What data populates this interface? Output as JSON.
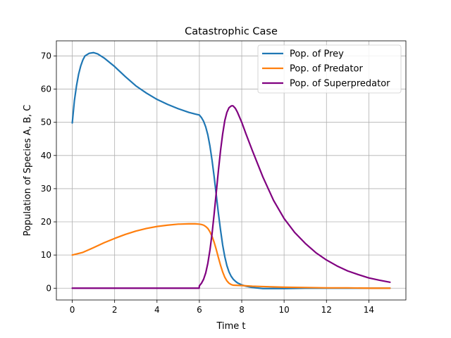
{
  "chart_data": {
    "type": "line",
    "title": "Catastrophic Case",
    "xlabel": "Time t",
    "ylabel": "Population of Species A, B, C",
    "xlim": [
      -0.75,
      15.75
    ],
    "ylim": [
      -3.55,
      74.55
    ],
    "xticks": [
      0,
      2,
      4,
      6,
      8,
      10,
      12,
      14
    ],
    "yticks": [
      0,
      10,
      20,
      30,
      40,
      50,
      60,
      70
    ],
    "grid": true,
    "legend_position": "top-right",
    "series": [
      {
        "name": "Pop. of Prey",
        "color": "#1f77b4",
        "x": [
          0,
          0.1,
          0.2,
          0.3,
          0.4,
          0.5,
          0.6,
          0.8,
          1.0,
          1.2,
          1.5,
          2.0,
          2.5,
          3.0,
          3.5,
          4.0,
          4.5,
          5.0,
          5.5,
          5.8,
          6.0,
          6.1,
          6.2,
          6.3,
          6.4,
          6.5,
          6.6,
          6.7,
          6.8,
          6.9,
          7.0,
          7.1,
          7.2,
          7.3,
          7.4,
          7.5,
          7.6,
          7.7,
          7.8,
          8.0,
          8.2,
          8.5,
          9.0,
          10.0,
          11.0,
          12.0,
          13.0,
          14.0,
          15.0
        ],
        "y": [
          49.8,
          56.5,
          61.0,
          64.5,
          67.0,
          68.8,
          70.0,
          70.8,
          71.0,
          70.6,
          69.4,
          66.8,
          63.8,
          61.0,
          58.8,
          56.9,
          55.4,
          54.1,
          53.0,
          52.5,
          52.2,
          51.4,
          50.3,
          48.6,
          46.2,
          42.8,
          38.5,
          33.5,
          28.0,
          22.5,
          17.5,
          13.0,
          9.5,
          6.8,
          4.9,
          3.6,
          2.7,
          2.1,
          1.6,
          1.0,
          0.6,
          0.2,
          -0.1,
          -0.1,
          0.0,
          0.0,
          0.0,
          0.0,
          0.0
        ]
      },
      {
        "name": "Pop. of Predator",
        "color": "#ff7f0e",
        "x": [
          0,
          0.5,
          1.0,
          1.5,
          2.0,
          2.5,
          3.0,
          3.5,
          4.0,
          4.5,
          5.0,
          5.5,
          5.8,
          6.0,
          6.1,
          6.2,
          6.3,
          6.4,
          6.5,
          6.6,
          6.7,
          6.8,
          6.9,
          7.0,
          7.1,
          7.2,
          7.3,
          7.4,
          7.5,
          7.6,
          8.0,
          8.5,
          9.0,
          10.0,
          11.0,
          12.0,
          13.0,
          14.0,
          15.0
        ],
        "y": [
          10.0,
          10.8,
          12.2,
          13.7,
          15.0,
          16.2,
          17.2,
          18.0,
          18.6,
          19.0,
          19.3,
          19.4,
          19.4,
          19.3,
          19.2,
          19.0,
          18.6,
          18.0,
          17.0,
          15.6,
          13.8,
          11.6,
          9.2,
          6.9,
          4.9,
          3.3,
          2.2,
          1.5,
          1.1,
          0.9,
          0.8,
          0.6,
          0.5,
          0.3,
          0.2,
          0.1,
          0.1,
          0.0,
          0.0
        ]
      },
      {
        "name": "Pop. of Superpredator",
        "color": "#800080",
        "x": [
          0,
          1,
          2,
          3,
          4,
          5,
          5.99,
          6.0,
          6.1,
          6.2,
          6.3,
          6.4,
          6.5,
          6.6,
          6.7,
          6.8,
          6.9,
          7.0,
          7.1,
          7.2,
          7.3,
          7.4,
          7.5,
          7.55,
          7.6,
          7.7,
          7.8,
          8.0,
          8.2,
          8.5,
          9.0,
          9.5,
          10.0,
          10.5,
          11.0,
          11.5,
          12.0,
          12.5,
          13.0,
          13.5,
          14.0,
          14.5,
          15.0
        ],
        "y": [
          0.0,
          0.0,
          0.0,
          0.0,
          0.0,
          0.0,
          0.0,
          0.7,
          1.5,
          2.7,
          4.6,
          7.5,
          11.5,
          16.5,
          22.5,
          29.0,
          35.5,
          41.5,
          46.5,
          50.5,
          53.0,
          54.4,
          54.9,
          55.0,
          54.9,
          54.2,
          53.0,
          50.0,
          46.5,
          41.5,
          33.5,
          26.5,
          21.0,
          16.8,
          13.5,
          10.7,
          8.5,
          6.7,
          5.2,
          4.1,
          3.1,
          2.4,
          1.8
        ]
      }
    ]
  }
}
